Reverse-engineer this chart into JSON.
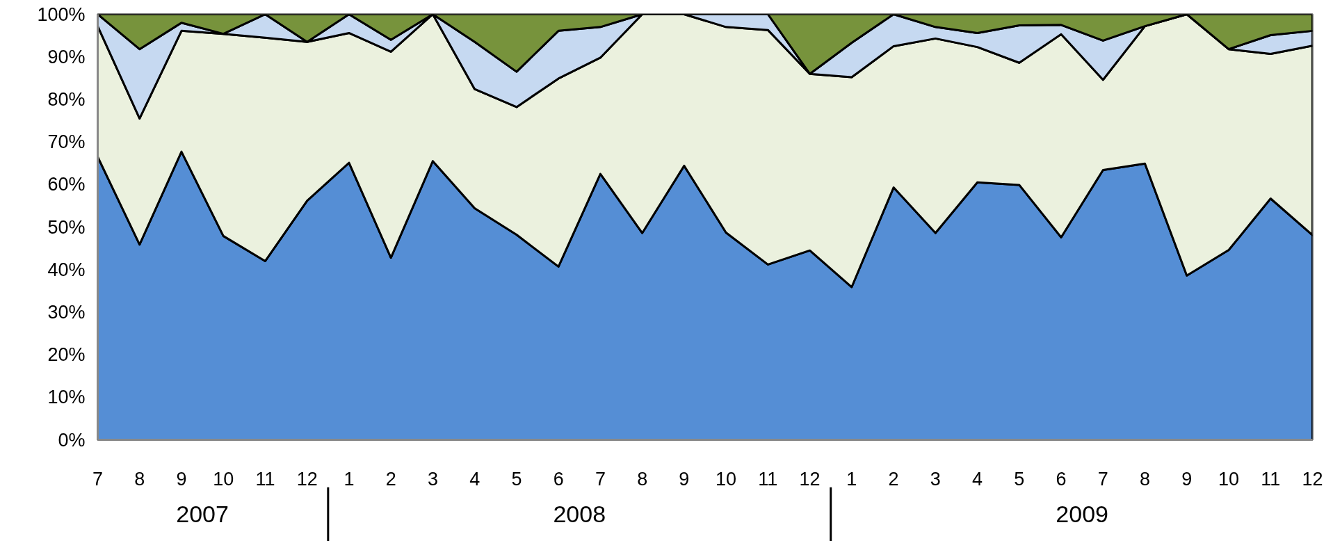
{
  "chart_data": {
    "type": "area",
    "stacked": true,
    "x": [
      "2007-07",
      "2007-08",
      "2007-09",
      "2007-10",
      "2007-11",
      "2007-12",
      "2008-01",
      "2008-02",
      "2008-03",
      "2008-04",
      "2008-05",
      "2008-06",
      "2008-07",
      "2008-08",
      "2008-09",
      "2008-10",
      "2008-11",
      "2008-12",
      "2009-01",
      "2009-02",
      "2009-03",
      "2009-04",
      "2009-05",
      "2009-06",
      "2009-07",
      "2009-08",
      "2009-09",
      "2009-10",
      "2009-11",
      "2009-12"
    ],
    "series": [
      {
        "color": "#558ed5",
        "values": [
          66.5,
          45.9,
          67.7,
          47.9,
          42.0,
          56.2,
          65.1,
          42.8,
          65.5,
          54.4,
          48.2,
          40.7,
          62.5,
          48.6,
          64.4,
          48.7,
          41.2,
          44.5,
          35.9,
          59.3,
          48.6,
          60.5,
          59.9,
          47.6,
          63.4,
          64.9,
          38.6,
          44.6,
          56.7,
          48.1
        ]
      },
      {
        "color": "#ebf1de",
        "values": [
          30.7,
          29.6,
          28.4,
          47.5,
          52.5,
          37.3,
          30.5,
          48.4,
          34.5,
          28.0,
          30.0,
          44.2,
          27.3,
          51.4,
          35.6,
          48.3,
          55.1,
          41.5,
          49.3,
          33.2,
          45.7,
          31.8,
          28.7,
          47.7,
          21.2,
          32.3,
          61.4,
          47.2,
          34.0,
          44.5
        ]
      },
      {
        "color": "#c6d9f1",
        "values": [
          2.8,
          16.3,
          1.9,
          0,
          5.5,
          0,
          4.4,
          2.8,
          0,
          11.1,
          8.3,
          11.2,
          7.2,
          0,
          0,
          3.0,
          3.7,
          0,
          8.1,
          7.5,
          2.7,
          3.3,
          8.8,
          2.2,
          9.2,
          0,
          0,
          0,
          4.4,
          3.5
        ]
      },
      {
        "color": "#77933c",
        "values": [
          0,
          8.2,
          2.0,
          4.6,
          0,
          6.5,
          0,
          6.0,
          0,
          6.5,
          13.5,
          3.9,
          3.0,
          0,
          0,
          0,
          0,
          14.0,
          6.7,
          0,
          3.0,
          4.4,
          2.6,
          2.5,
          6.2,
          2.8,
          0,
          8.2,
          4.9,
          3.9
        ]
      }
    ],
    "xlim": [
      "2007-07",
      "2009-12"
    ],
    "xticks": [
      {
        "value": "2007-07",
        "label": "7"
      },
      {
        "value": "2007-08",
        "label": "8"
      },
      {
        "value": "2007-09",
        "label": "9"
      },
      {
        "value": "2007-10",
        "label": "10"
      },
      {
        "value": "2007-11",
        "label": "11"
      },
      {
        "value": "2007-12",
        "label": "12"
      },
      {
        "value": "2008-01",
        "label": "1"
      },
      {
        "value": "2008-02",
        "label": "2"
      },
      {
        "value": "2008-03",
        "label": "3"
      },
      {
        "value": "2008-04",
        "label": "4"
      },
      {
        "value": "2008-05",
        "label": "5"
      },
      {
        "value": "2008-06",
        "label": "6"
      },
      {
        "value": "2008-07",
        "label": "7"
      },
      {
        "value": "2008-08",
        "label": "8"
      },
      {
        "value": "2008-09",
        "label": "9"
      },
      {
        "value": "2008-10",
        "label": "10"
      },
      {
        "value": "2008-11",
        "label": "11"
      },
      {
        "value": "2008-12",
        "label": "12"
      },
      {
        "value": "2009-01",
        "label": "1"
      },
      {
        "value": "2009-02",
        "label": "2"
      },
      {
        "value": "2009-03",
        "label": "3"
      },
      {
        "value": "2009-04",
        "label": "4"
      },
      {
        "value": "2009-05",
        "label": "5"
      },
      {
        "value": "2009-06",
        "label": "6"
      },
      {
        "value": "2009-07",
        "label": "7"
      },
      {
        "value": "2009-08",
        "label": "8"
      },
      {
        "value": "2009-09",
        "label": "9"
      },
      {
        "value": "2009-10",
        "label": "10"
      },
      {
        "value": "2009-11",
        "label": "11"
      },
      {
        "value": "2009-12",
        "label": "12"
      }
    ],
    "annotations": [
      "2007",
      "2008",
      "2009"
    ],
    "ylim": [
      0,
      100
    ],
    "yticks": [
      {
        "value": 0,
        "label": "0%"
      },
      {
        "value": 10,
        "label": "10%"
      },
      {
        "value": 20,
        "label": "20%"
      },
      {
        "value": 30,
        "label": "30%"
      },
      {
        "value": 40,
        "label": "40%"
      },
      {
        "value": 50,
        "label": "50%"
      },
      {
        "value": 60,
        "label": "60%"
      },
      {
        "value": 70,
        "label": "70%"
      },
      {
        "value": 80,
        "label": "80%"
      },
      {
        "value": 90,
        "label": "90%"
      },
      {
        "value": 100,
        "label": "100%"
      }
    ]
  }
}
